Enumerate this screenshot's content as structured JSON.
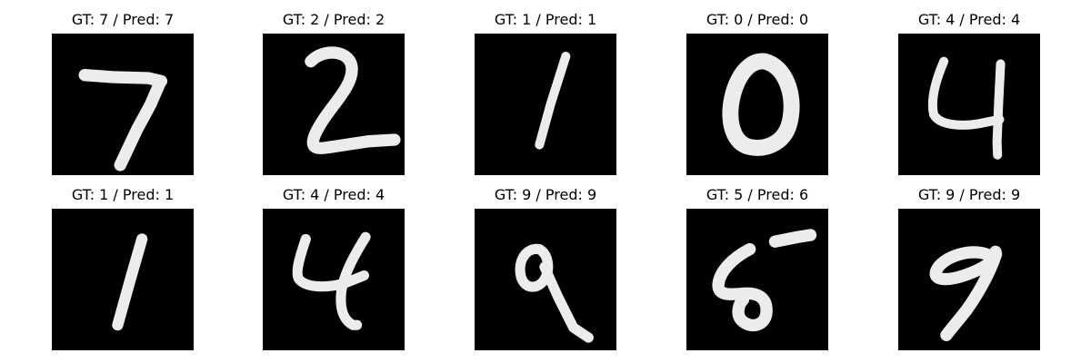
{
  "samples": [
    {
      "title": "GT: 7 / Pred: 7",
      "gt": 7,
      "pred": 7,
      "digit_icon": "handwritten-7"
    },
    {
      "title": "GT: 2 / Pred: 2",
      "gt": 2,
      "pred": 2,
      "digit_icon": "handwritten-2"
    },
    {
      "title": "GT: 1 / Pred: 1",
      "gt": 1,
      "pred": 1,
      "digit_icon": "handwritten-1"
    },
    {
      "title": "GT: 0 / Pred: 0",
      "gt": 0,
      "pred": 0,
      "digit_icon": "handwritten-0"
    },
    {
      "title": "GT: 4 / Pred: 4",
      "gt": 4,
      "pred": 4,
      "digit_icon": "handwritten-4"
    },
    {
      "title": "GT: 1 / Pred: 1",
      "gt": 1,
      "pred": 1,
      "digit_icon": "handwritten-1"
    },
    {
      "title": "GT: 4 / Pred: 4",
      "gt": 4,
      "pred": 4,
      "digit_icon": "handwritten-4"
    },
    {
      "title": "GT: 9 / Pred: 9",
      "gt": 9,
      "pred": 9,
      "digit_icon": "handwritten-9"
    },
    {
      "title": "GT: 5 / Pred: 6",
      "gt": 5,
      "pred": 6,
      "digit_icon": "handwritten-5"
    },
    {
      "title": "GT: 9 / Pred: 9",
      "gt": 9,
      "pred": 9,
      "digit_icon": "handwritten-9"
    }
  ],
  "colors": {
    "background": "#ffffff",
    "image_background": "#000000",
    "stroke": "#ececec",
    "title_text": "#000000"
  }
}
